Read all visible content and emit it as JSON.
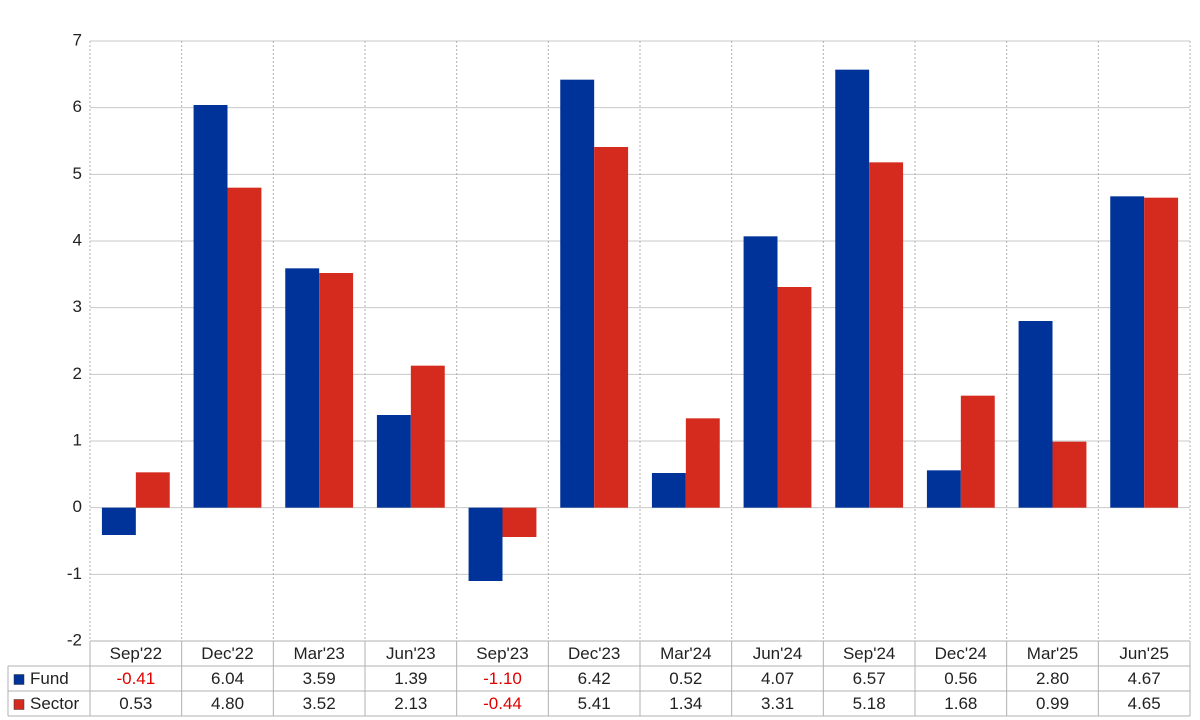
{
  "chart_data": {
    "type": "bar",
    "categories": [
      "Sep'22",
      "Dec'22",
      "Mar'23",
      "Jun'23",
      "Sep'23",
      "Dec'23",
      "Mar'24",
      "Jun'24",
      "Sep'24",
      "Dec'24",
      "Mar'25",
      "Jun'25"
    ],
    "series": [
      {
        "name": "Fund",
        "color": "#003399",
        "values": [
          -0.41,
          6.04,
          3.59,
          1.39,
          -1.1,
          6.42,
          0.52,
          4.07,
          6.57,
          0.56,
          2.8,
          4.67
        ],
        "value_labels": [
          "-0.41",
          "6.04",
          "3.59",
          "1.39",
          "-1.10",
          "6.42",
          "0.52",
          "4.07",
          "6.57",
          "0.56",
          "2.80",
          "4.67"
        ]
      },
      {
        "name": "Sector",
        "color": "#d52b1e",
        "values": [
          0.53,
          4.8,
          3.52,
          2.13,
          -0.44,
          5.41,
          1.34,
          3.31,
          5.18,
          1.68,
          0.99,
          4.65
        ],
        "value_labels": [
          "0.53",
          "4.80",
          "3.52",
          "2.13",
          "-0.44",
          "5.41",
          "1.34",
          "3.31",
          "5.18",
          "1.68",
          "0.99",
          "4.65"
        ]
      }
    ],
    "ylim": [
      -2,
      7
    ],
    "yticks": [
      -2,
      -1,
      0,
      1,
      2,
      3,
      4,
      5,
      6,
      7
    ],
    "grid": true,
    "negative_label_color": "#e00000"
  }
}
